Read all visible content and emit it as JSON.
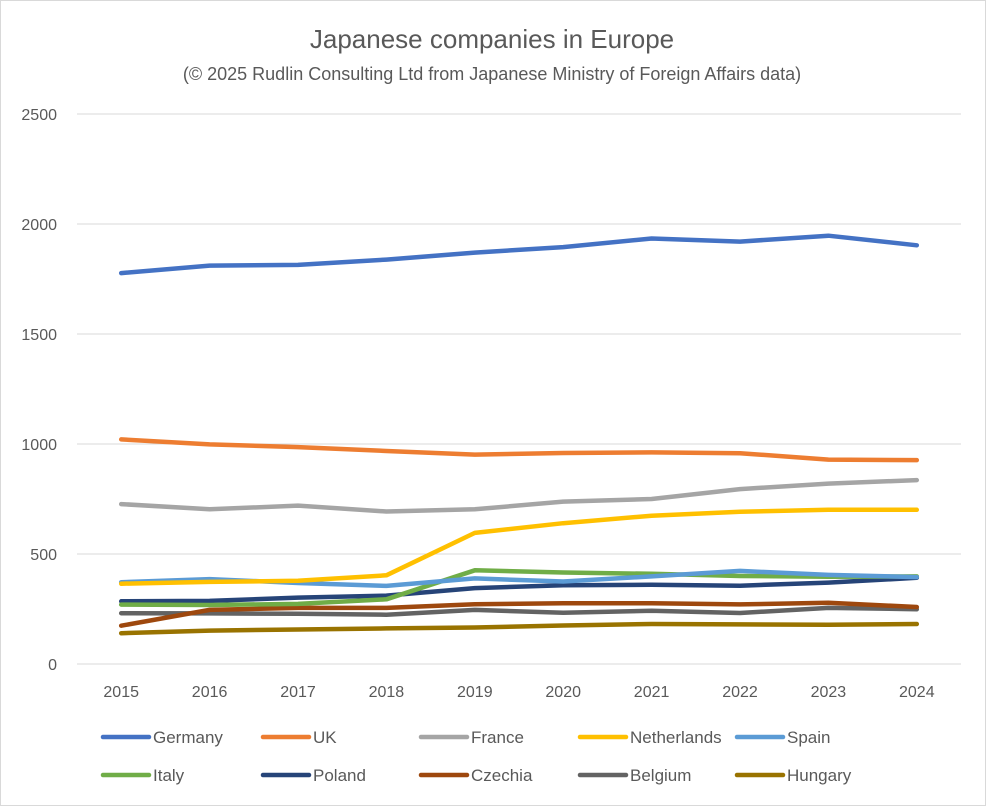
{
  "chart_data": {
    "type": "line",
    "title": "Japanese companies in Europe",
    "subtitle": "(© 2025 Rudlin Consulting Ltd from Japanese Ministry of Foreign Affairs data)",
    "xlabel": "",
    "ylabel": "",
    "ylim": [
      0,
      2500
    ],
    "yticks": [
      0,
      500,
      1000,
      1500,
      2000,
      2500
    ],
    "grid": true,
    "legend_position": "bottom",
    "x": [
      "2015",
      "2016",
      "2017",
      "2018",
      "2019",
      "2020",
      "2021",
      "2022",
      "2023",
      "2024"
    ],
    "series": [
      {
        "name": "Germany",
        "color": "#4472c4",
        "values": [
          1777,
          1811,
          1814,
          1838,
          1870,
          1895,
          1934,
          1920,
          1947,
          1903
        ]
      },
      {
        "name": "UK",
        "color": "#ed7d31",
        "values": [
          1021,
          998,
          986,
          968,
          952,
          959,
          962,
          958,
          929,
          927
        ]
      },
      {
        "name": "France",
        "color": "#a5a5a5",
        "values": [
          727,
          703,
          720,
          693,
          703,
          738,
          750,
          795,
          820,
          836
        ]
      },
      {
        "name": "Netherlands",
        "color": "#ffc000",
        "values": [
          365,
          373,
          378,
          403,
          596,
          640,
          674,
          692,
          701,
          701
        ]
      },
      {
        "name": "Spain",
        "color": "#5b9bd5",
        "values": [
          372,
          386,
          368,
          355,
          389,
          375,
          398,
          423,
          405,
          395
        ]
      },
      {
        "name": "Italy",
        "color": "#70ad47",
        "values": [
          270,
          268,
          273,
          294,
          426,
          416,
          410,
          400,
          397,
          398
        ]
      },
      {
        "name": "Poland",
        "color": "#264478",
        "values": [
          285,
          287,
          302,
          311,
          345,
          358,
          360,
          356,
          370,
          392
        ]
      },
      {
        "name": "Czechia",
        "color": "#9e480e",
        "values": [
          174,
          246,
          255,
          255,
          272,
          276,
          276,
          271,
          278,
          259
        ]
      },
      {
        "name": "Belgium",
        "color": "#636363",
        "values": [
          231,
          230,
          228,
          224,
          246,
          233,
          242,
          232,
          255,
          249
        ]
      },
      {
        "name": "Hungary",
        "color": "#997300",
        "values": [
          140,
          152,
          157,
          162,
          166,
          175,
          182,
          180,
          178,
          182
        ]
      }
    ]
  }
}
